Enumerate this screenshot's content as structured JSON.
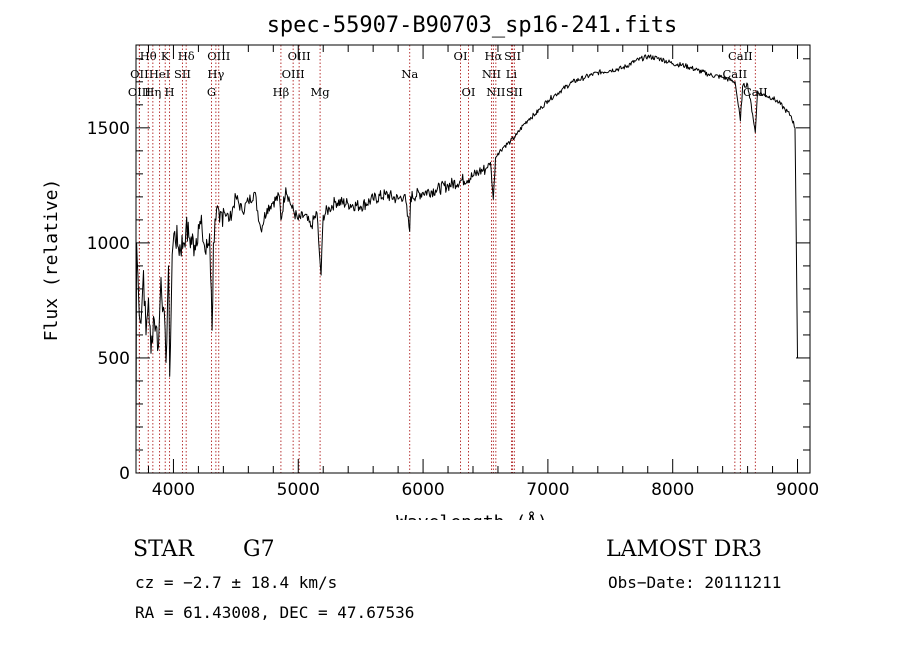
{
  "chart_data": {
    "type": "line",
    "title": "spec-55907-B90703_sp16-241.fits",
    "xlabel": "Wavelength (Å)",
    "ylabel": "Flux (relative)",
    "xlim": [
      3700,
      9100
    ],
    "ylim": [
      0,
      1860
    ],
    "x_ticks": [
      4000,
      5000,
      6000,
      7000,
      8000,
      9000
    ],
    "y_ticks": [
      0,
      500,
      1000,
      1500
    ],
    "series": [
      {
        "name": "flux",
        "x": [
          3700,
          3705,
          3720,
          3740,
          3760,
          3780,
          3800,
          3820,
          3840,
          3860,
          3880,
          3900,
          3920,
          3940,
          3960,
          3970,
          3990,
          4010,
          4040,
          4080,
          4100,
          4130,
          4170,
          4200,
          4230,
          4260,
          4290,
          4310,
          4320,
          4340,
          4370,
          4400,
          4450,
          4500,
          4550,
          4600,
          4650,
          4700,
          4750,
          4800,
          4850,
          4861,
          4900,
          4950,
          5000,
          5050,
          5100,
          5150,
          5170,
          5183,
          5200,
          5250,
          5300,
          5400,
          5500,
          5600,
          5700,
          5800,
          5850,
          5893,
          5900,
          6000,
          6100,
          6200,
          6300,
          6400,
          6450,
          6500,
          6540,
          6563,
          6580,
          6600,
          6650,
          6700,
          6750,
          6800,
          6850,
          6900,
          6950,
          7000,
          7050,
          7100,
          7200,
          7300,
          7400,
          7500,
          7600,
          7700,
          7800,
          7900,
          8000,
          8100,
          8200,
          8300,
          8400,
          8500,
          8520,
          8542,
          8560,
          8600,
          8640,
          8662,
          8680,
          8700,
          8750,
          8800,
          8850,
          8900,
          8950,
          8980,
          9000
        ],
        "y": [
          150,
          1000,
          780,
          650,
          880,
          600,
          760,
          520,
          680,
          640,
          550,
          850,
          720,
          480,
          900,
          420,
          950,
          1050,
          980,
          1000,
          1060,
          1020,
          990,
          1080,
          1050,
          950,
          1040,
          620,
          1000,
          1100,
          1090,
          1150,
          1100,
          1200,
          1140,
          1180,
          1220,
          1060,
          1150,
          1180,
          1200,
          1100,
          1240,
          1150,
          1100,
          1120,
          1070,
          1130,
          950,
          860,
          1120,
          1150,
          1180,
          1170,
          1160,
          1190,
          1210,
          1190,
          1210,
          1050,
          1200,
          1220,
          1230,
          1250,
          1270,
          1290,
          1310,
          1320,
          1350,
          1190,
          1370,
          1390,
          1420,
          1440,
          1470,
          1510,
          1540,
          1560,
          1590,
          1620,
          1640,
          1660,
          1700,
          1720,
          1740,
          1750,
          1760,
          1790,
          1810,
          1800,
          1780,
          1770,
          1750,
          1730,
          1720,
          1700,
          1620,
          1530,
          1680,
          1690,
          1560,
          1480,
          1660,
          1650,
          1640,
          1630,
          1610,
          1580,
          1550,
          1500,
          500
        ]
      }
    ],
    "spectral_lines": [
      {
        "name": "Hθ",
        "wavelength": 3798,
        "row": 0
      },
      {
        "name": "K",
        "wavelength": 3934,
        "row": 0
      },
      {
        "name": "Hδ",
        "wavelength": 4102,
        "row": 0
      },
      {
        "name": "OIII",
        "wavelength": 4363,
        "row": 0
      },
      {
        "name": "OIII",
        "wavelength": 5007,
        "row": 0
      },
      {
        "name": "OI",
        "wavelength": 6300,
        "row": 0
      },
      {
        "name": "Hα",
        "wavelength": 6563,
        "row": 0
      },
      {
        "name": "SII",
        "wavelength": 6717,
        "row": 0
      },
      {
        "name": "CaII",
        "wavelength": 8542,
        "row": 0
      },
      {
        "name": "OII",
        "wavelength": 3727,
        "row": 1
      },
      {
        "name": "HeI",
        "wavelength": 3889,
        "row": 1
      },
      {
        "name": "SII",
        "wavelength": 4072,
        "row": 1
      },
      {
        "name": "Hγ",
        "wavelength": 4340,
        "row": 1
      },
      {
        "name": "OIII",
        "wavelength": 4959,
        "row": 1
      },
      {
        "name": "Na",
        "wavelength": 5893,
        "row": 1
      },
      {
        "name": "NII",
        "wavelength": 6548,
        "row": 1
      },
      {
        "name": "Li",
        "wavelength": 6708,
        "row": 1
      },
      {
        "name": "CaII",
        "wavelength": 8498,
        "row": 1
      },
      {
        "name": "OIII",
        "wavelength": 3727,
        "row": 2
      },
      {
        "name": "Hη",
        "wavelength": 3835,
        "row": 2
      },
      {
        "name": "H",
        "wavelength": 3969,
        "row": 2
      },
      {
        "name": "G",
        "wavelength": 4305,
        "row": 2
      },
      {
        "name": "Hβ",
        "wavelength": 4861,
        "row": 2
      },
      {
        "name": "Mg",
        "wavelength": 5175,
        "row": 2
      },
      {
        "name": "OI",
        "wavelength": 6364,
        "row": 2
      },
      {
        "name": "NII",
        "wavelength": 6583,
        "row": 2
      },
      {
        "name": "SII",
        "wavelength": 6731,
        "row": 2
      },
      {
        "name": "CaII",
        "wavelength": 8662,
        "row": 2
      }
    ]
  },
  "info": {
    "class": "STAR",
    "subclass": "G7",
    "survey": "LAMOST DR3",
    "cz": "cz = −2.7 ± 18.4 km/s",
    "obs_date": "Obs−Date: 20111211",
    "radec": "RA =  61.43008, DEC =  47.67536"
  },
  "colors": {
    "line_marker": "#b02020",
    "spectrum": "#000000"
  }
}
